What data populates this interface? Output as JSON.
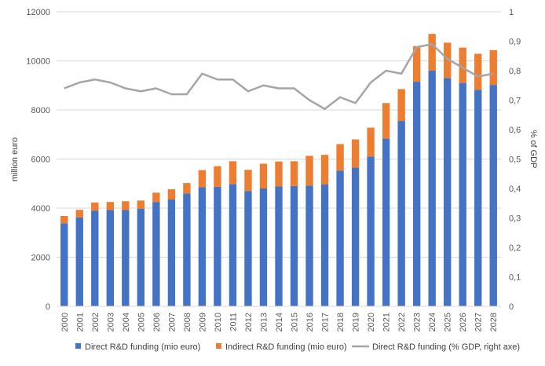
{
  "chart_data": {
    "type": "bar",
    "stacked": true,
    "categories": [
      "2000",
      "2001",
      "2002",
      "2003",
      "2004",
      "2005",
      "2006",
      "2007",
      "2008",
      "2009",
      "2010",
      "2011",
      "2012",
      "2013",
      "2014",
      "2015",
      "2016",
      "2017",
      "2018",
      "2019",
      "2020",
      "2021",
      "2022",
      "2023",
      "2024",
      "2025",
      "2026",
      "2027",
      "2028"
    ],
    "series": [
      {
        "name": "Direct R&D funding (mio euro)",
        "kind": "bar",
        "axis": "left",
        "color": "#4472C4",
        "values": [
          3380,
          3620,
          3900,
          3920,
          3920,
          3980,
          4250,
          4350,
          4600,
          4850,
          4870,
          4980,
          4700,
          4800,
          4880,
          4900,
          4920,
          4960,
          5530,
          5650,
          6100,
          6830,
          7550,
          9150,
          9600,
          9300,
          9100,
          8820,
          9020
        ]
      },
      {
        "name": "Indirect R&D funding (mio euro)",
        "kind": "bar",
        "axis": "left",
        "color": "#ED7D31",
        "values": [
          300,
          310,
          330,
          330,
          360,
          330,
          380,
          420,
          420,
          700,
          840,
          930,
          860,
          1010,
          1020,
          1010,
          1210,
          1210,
          1080,
          1150,
          1180,
          1450,
          1300,
          1450,
          1500,
          1440,
          1440,
          1470,
          1420
        ]
      },
      {
        "name": "Direct R&D funding (% GDP, right axe)",
        "kind": "line",
        "axis": "right",
        "color": "#A5A5A5",
        "values": [
          0.74,
          0.76,
          0.77,
          0.76,
          0.74,
          0.73,
          0.74,
          0.72,
          0.72,
          0.79,
          0.77,
          0.77,
          0.73,
          0.75,
          0.74,
          0.74,
          0.7,
          0.67,
          0.71,
          0.69,
          0.76,
          0.8,
          0.79,
          0.88,
          0.89,
          0.84,
          0.81,
          0.78,
          0.79
        ]
      }
    ],
    "ylabel": "million euro",
    "y2label": "% of GDP",
    "ylim": [
      0,
      12000
    ],
    "yticks": [
      "0",
      "2000",
      "4000",
      "6000",
      "8000",
      "10000",
      "12000"
    ],
    "y2lim": [
      0,
      1
    ],
    "y2ticks": [
      "0",
      "0,1",
      "0,2",
      "0,3",
      "0,4",
      "0,5",
      "0,6",
      "0,7",
      "0,8",
      "0,9",
      "1"
    ],
    "legend": "bottom",
    "grid": true
  }
}
